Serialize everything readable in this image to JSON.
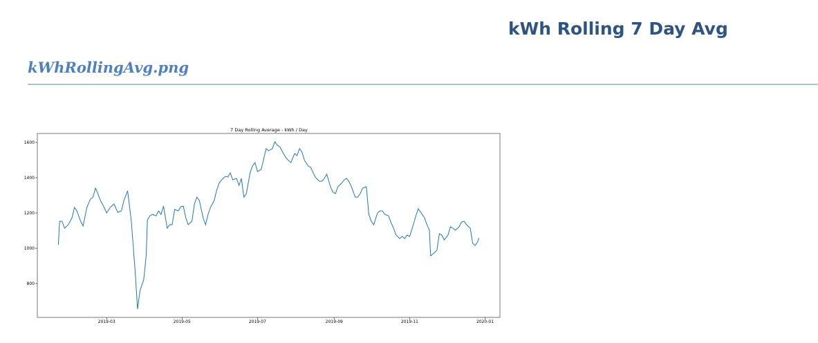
{
  "header": {
    "title": "kWh Rolling 7 Day Avg",
    "filename": "kWhRollingAvg.png"
  },
  "chart_data": {
    "type": "line",
    "title": "7 Day Rolling Average - kWh / Day",
    "x": [
      21,
      22,
      24,
      26,
      29,
      32,
      34,
      36,
      39,
      41,
      44,
      47,
      49,
      51,
      53,
      55,
      58,
      60,
      63,
      66,
      69,
      72,
      74,
      77,
      80,
      83,
      85,
      87,
      90,
      92,
      93,
      95,
      97,
      100,
      102,
      104,
      106,
      109,
      111,
      113,
      115,
      118,
      120,
      122,
      124,
      126,
      129,
      131,
      133,
      135,
      138,
      140,
      142,
      144,
      147,
      149,
      151,
      153,
      156,
      158,
      160,
      162,
      165,
      167,
      169,
      171,
      173,
      176,
      178,
      180,
      182,
      185,
      187,
      189,
      191,
      194,
      196,
      198,
      200,
      203,
      205,
      207,
      209,
      212,
      214,
      216,
      218,
      220,
      223,
      225,
      227,
      229,
      232,
      234,
      236,
      238,
      241,
      243,
      245,
      247,
      250,
      252,
      254,
      256,
      258,
      261,
      263,
      265,
      267,
      270,
      272,
      274,
      276,
      279,
      281,
      283,
      285,
      288,
      290,
      292,
      294,
      297,
      299,
      301,
      303,
      305,
      308,
      310,
      312,
      314,
      317,
      319,
      321,
      322,
      324,
      327,
      329,
      331,
      333,
      336,
      338,
      340,
      342,
      345,
      347,
      349,
      351,
      354,
      356,
      358,
      360,
      361
    ],
    "series": [
      {
        "color": "#1f77b4",
        "values": [
          1020,
          1153,
          1153,
          1114,
          1133,
          1173,
          1232,
          1212,
          1153,
          1126,
          1232,
          1279,
          1290,
          1341,
          1310,
          1271,
          1232,
          1200,
          1232,
          1251,
          1204,
          1212,
          1271,
          1326,
          1153,
          879,
          655,
          761,
          820,
          957,
          1161,
          1184,
          1192,
          1184,
          1212,
          1192,
          1239,
          1114,
          1134,
          1134,
          1220,
          1212,
          1235,
          1239,
          1173,
          1134,
          1153,
          1251,
          1290,
          1271,
          1173,
          1134,
          1192,
          1232,
          1271,
          1330,
          1369,
          1388,
          1408,
          1404,
          1428,
          1388,
          1396,
          1357,
          1396,
          1290,
          1310,
          1428,
          1467,
          1486,
          1435,
          1447,
          1506,
          1565,
          1553,
          1565,
          1604,
          1584,
          1576,
          1537,
          1514,
          1498,
          1486,
          1537,
          1526,
          1565,
          1545,
          1498,
          1467,
          1459,
          1428,
          1400,
          1380,
          1380,
          1396,
          1420,
          1349,
          1318,
          1310,
          1349,
          1369,
          1388,
          1396,
          1377,
          1349,
          1290,
          1290,
          1310,
          1341,
          1349,
          1192,
          1153,
          1134,
          1200,
          1212,
          1212,
          1192,
          1184,
          1145,
          1114,
          1075,
          1055,
          1067,
          1055,
          1075,
          1067,
          1134,
          1184,
          1224,
          1204,
          1173,
          1134,
          1102,
          957,
          969,
          988,
          1083,
          1075,
          1047,
          1075,
          1122,
          1114,
          1102,
          1122,
          1149,
          1153,
          1134,
          1114,
          1028,
          1016,
          1036,
          1059
        ]
      }
    ],
    "xlim": [
      4,
      378
    ],
    "xticks": [
      {
        "value": 60,
        "label": "2019-03"
      },
      {
        "value": 121,
        "label": "2019-05"
      },
      {
        "value": 182,
        "label": "2019-07"
      },
      {
        "value": 244,
        "label": "2019-09"
      },
      {
        "value": 305,
        "label": "2019-11"
      },
      {
        "value": 366,
        "label": "2020-01"
      }
    ],
    "ylim": [
      608,
      1651
    ],
    "yticks": [
      800,
      1000,
      1200,
      1400,
      1600
    ]
  }
}
